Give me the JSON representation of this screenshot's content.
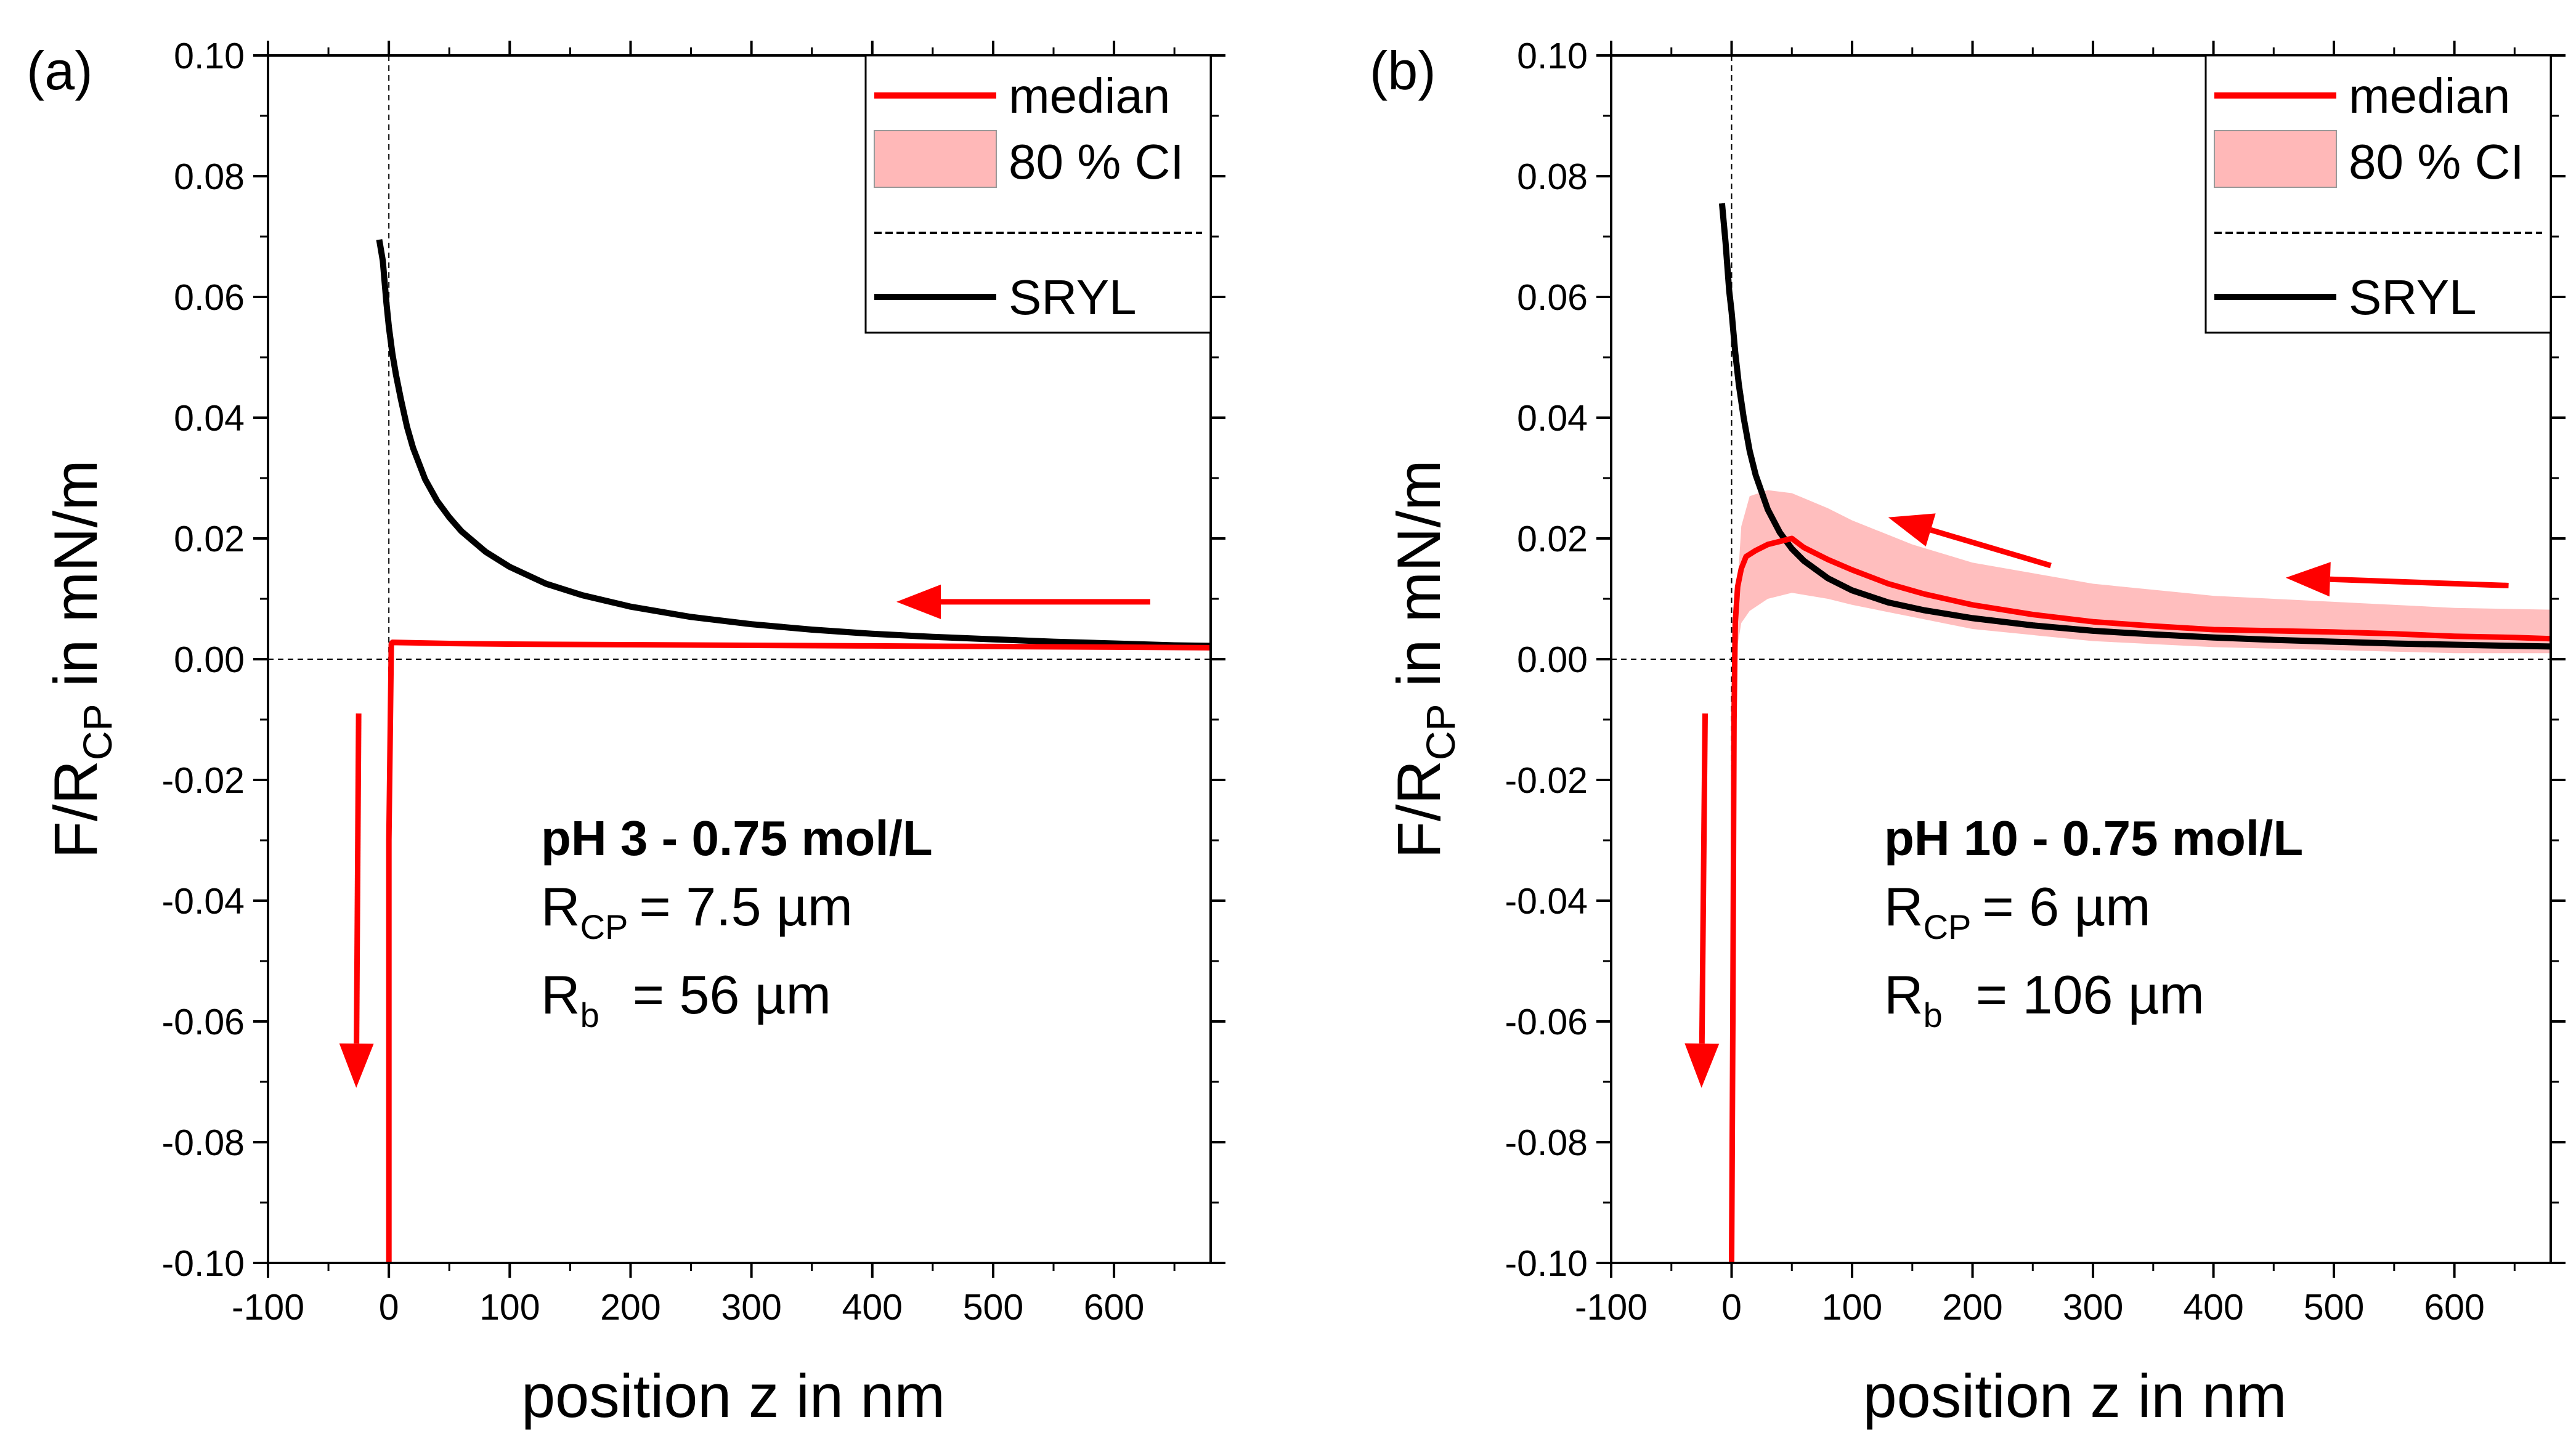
{
  "chart_data": [
    {
      "type": "line",
      "panel_label": "(a)",
      "xlabel": "position z in nm",
      "ylabel": {
        "main": "F/R",
        "sub": "CP",
        "tail": " in mN/m"
      },
      "xlim": [
        -100,
        680
      ],
      "ylim": [
        -0.1,
        0.1
      ],
      "x_ticks": [
        -100,
        0,
        100,
        200,
        300,
        400,
        500,
        600
      ],
      "x_tick_labels": [
        "-100",
        "0",
        "100",
        "200",
        "300",
        "400",
        "500",
        "600"
      ],
      "y_ticks": [
        -0.1,
        -0.08,
        -0.06,
        -0.04,
        -0.02,
        0.0,
        0.02,
        0.04,
        0.06,
        0.08,
        0.1
      ],
      "y_tick_labels": [
        "-0.10",
        "-0.08",
        "-0.06",
        "-0.04",
        "-0.02",
        "0.00",
        "0.02",
        "0.04",
        "0.06",
        "0.08",
        "0.10"
      ],
      "legend": [
        "median",
        "80 % CI",
        "SRYL"
      ],
      "legend_position": "top-right",
      "reference_lines": {
        "x": 0,
        "y": 0
      },
      "annotation": {
        "title": "pH 3 - 0.75 mol/L",
        "r_cp": {
          "label": "R",
          "sub": "CP",
          "value": "=  7.5 µm"
        },
        "r_b": {
          "label": "R",
          "sub": "b",
          "value": "= 56 µm"
        }
      },
      "series": [
        {
          "name": "SRYL",
          "color": "#000000",
          "x": [
            -8,
            -5,
            -2,
            0,
            3,
            6,
            10,
            15,
            20,
            30,
            40,
            50,
            60,
            80,
            100,
            130,
            160,
            200,
            250,
            300,
            350,
            400,
            450,
            500,
            550,
            600,
            650,
            680
          ],
          "y": [
            0.0695,
            0.066,
            0.059,
            0.055,
            0.0505,
            0.047,
            0.043,
            0.0385,
            0.035,
            0.0298,
            0.0262,
            0.0235,
            0.0212,
            0.0178,
            0.0153,
            0.0125,
            0.0106,
            0.0087,
            0.007,
            0.0058,
            0.0049,
            0.0042,
            0.0037,
            0.0033,
            0.0029,
            0.0026,
            0.0023,
            0.0022
          ]
        },
        {
          "name": "median",
          "color": "#ff0000",
          "x": [
            0,
            0,
            2,
            3,
            50,
            100,
            200,
            300,
            400,
            500,
            600,
            680
          ],
          "y": [
            -0.1,
            -0.03,
            0.0025,
            0.0028,
            0.0026,
            0.0025,
            0.0024,
            0.0023,
            0.0022,
            0.0021,
            0.002,
            0.0019
          ]
        },
        {
          "name": "80 % CI",
          "color": "#ffb3b3",
          "x": [
            3,
            100,
            200,
            300,
            400,
            500,
            600,
            680
          ],
          "upper": [
            0.003,
            0.0029,
            0.0028,
            0.0027,
            0.0026,
            0.0025,
            0.0024,
            0.0023
          ],
          "lower": [
            0.0022,
            0.0021,
            0.002,
            0.0019,
            0.0018,
            0.0017,
            0.0016,
            0.0015
          ]
        }
      ],
      "arrows": [
        {
          "from": [
            630,
            0.0095
          ],
          "to": [
            420,
            0.0095
          ]
        },
        {
          "from": [
            -25,
            -0.009
          ],
          "to": [
            -27,
            -0.071
          ]
        }
      ]
    },
    {
      "type": "line",
      "panel_label": "(b)",
      "xlabel": "position z in nm",
      "ylabel": {
        "main": "F/R",
        "sub": "CP",
        "tail": " in mN/m"
      },
      "xlim": [
        -100,
        680
      ],
      "ylim": [
        -0.1,
        0.1
      ],
      "x_ticks": [
        -100,
        0,
        100,
        200,
        300,
        400,
        500,
        600
      ],
      "x_tick_labels": [
        "-100",
        "0",
        "100",
        "200",
        "300",
        "400",
        "500",
        "600"
      ],
      "y_ticks": [
        -0.1,
        -0.08,
        -0.06,
        -0.04,
        -0.02,
        0.0,
        0.02,
        0.04,
        0.06,
        0.08,
        0.1
      ],
      "y_tick_labels": [
        "-0.10",
        "-0.08",
        "-0.06",
        "-0.04",
        "-0.02",
        "0.00",
        "0.02",
        "0.04",
        "0.06",
        "0.08",
        "0.10"
      ],
      "legend": [
        "median",
        "80 % CI",
        "SRYL"
      ],
      "legend_position": "top-right",
      "reference_lines": {
        "x": 0,
        "y": 0
      },
      "annotation": {
        "title": "pH 10 - 0.75 mol/L",
        "r_cp": {
          "label": "R",
          "sub": "CP",
          "value": "=   6 µm"
        },
        "r_b": {
          "label": "R",
          "sub": "b",
          "value": "= 106 µm"
        }
      },
      "series": [
        {
          "name": "SRYL",
          "color": "#000000",
          "x": [
            -8,
            -5,
            -2,
            0,
            3,
            6,
            10,
            15,
            20,
            30,
            40,
            50,
            60,
            80,
            100,
            130,
            160,
            200,
            250,
            300,
            350,
            400,
            450,
            500,
            550,
            600,
            650,
            680
          ],
          "y": [
            0.0755,
            0.069,
            0.061,
            0.0575,
            0.0508,
            0.0455,
            0.04,
            0.0345,
            0.0305,
            0.0248,
            0.021,
            0.0183,
            0.0163,
            0.0134,
            0.0114,
            0.0094,
            0.0081,
            0.0068,
            0.0056,
            0.0047,
            0.0041,
            0.0036,
            0.0032,
            0.0029,
            0.0026,
            0.0024,
            0.0022,
            0.0021
          ]
        },
        {
          "name": "median",
          "color": "#ff0000",
          "x": [
            0,
            1,
            2,
            3,
            5,
            8,
            12,
            20,
            30,
            40,
            50,
            60,
            80,
            100,
            130,
            160,
            200,
            250,
            300,
            350,
            400,
            450,
            500,
            550,
            600,
            650,
            680
          ],
          "y": [
            -0.1,
            -0.06,
            -0.01,
            0.006,
            0.012,
            0.015,
            0.017,
            0.018,
            0.019,
            0.0195,
            0.02,
            0.0185,
            0.0165,
            0.0148,
            0.0125,
            0.0108,
            0.009,
            0.0074,
            0.0062,
            0.0055,
            0.0049,
            0.0047,
            0.0045,
            0.0042,
            0.0038,
            0.0036,
            0.0034
          ]
        },
        {
          "name": "80 % CI",
          "color": "#ffb3b3",
          "x": [
            3,
            8,
            15,
            30,
            50,
            80,
            100,
            150,
            200,
            300,
            400,
            500,
            600,
            680
          ],
          "upper": [
            0.006,
            0.022,
            0.027,
            0.028,
            0.0275,
            0.025,
            0.023,
            0.019,
            0.016,
            0.0125,
            0.0105,
            0.0095,
            0.0085,
            0.0082
          ],
          "lower": [
            0.0,
            0.006,
            0.008,
            0.01,
            0.011,
            0.01,
            0.009,
            0.007,
            0.005,
            0.003,
            0.002,
            0.0015,
            0.001,
            0.001
          ]
        }
      ],
      "arrows": [
        {
          "from": [
            265,
            0.0155
          ],
          "to": [
            130,
            0.0235
          ]
        },
        {
          "from": [
            645,
            0.0122
          ],
          "to": [
            460,
            0.0135
          ]
        },
        {
          "from": [
            -22,
            -0.009
          ],
          "to": [
            -25,
            -0.071
          ]
        }
      ]
    }
  ]
}
